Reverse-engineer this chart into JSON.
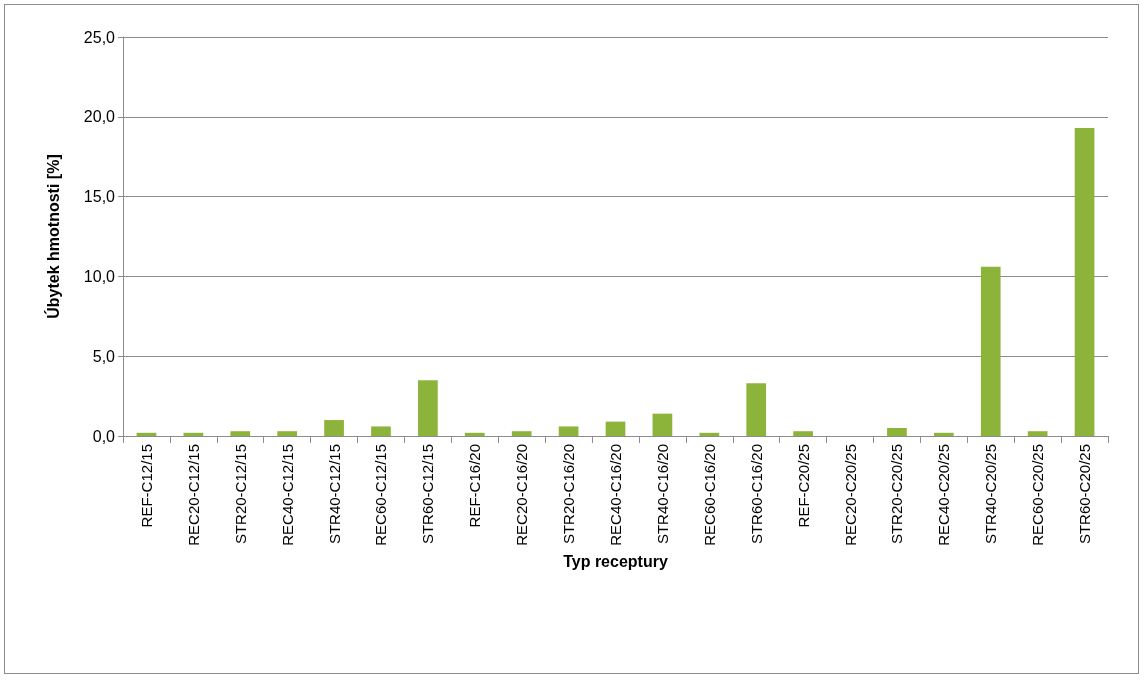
{
  "chart_data": {
    "type": "bar",
    "xlabel": "Typ receptury",
    "ylabel": "Úbytek hmotnosti [%]",
    "categories": [
      "REF-C12/15",
      "REC20-C12/15",
      "STR20-C12/15",
      "REC40-C12/15",
      "STR40-C12/15",
      "REC60-C12/15",
      "STR60-C12/15",
      "REF-C16/20",
      "REC20-C16/20",
      "STR20-C16/20",
      "REC40-C16/20",
      "STR40-C16/20",
      "REC60-C16/20",
      "STR60-C16/20",
      "REF-C20/25",
      "REC20-C20/25",
      "STR20-C20/25",
      "REC40-C20/25",
      "STR40-C20/25",
      "REC60-C20/25",
      "STR60-C20/25"
    ],
    "values": [
      0.2,
      0.2,
      0.3,
      0.3,
      1.0,
      0.6,
      3.5,
      0.2,
      0.3,
      0.6,
      0.9,
      1.4,
      0.2,
      3.3,
      0.3,
      0,
      0.5,
      0.2,
      10.6,
      0.3,
      19.3
    ],
    "color": "#8cb43a",
    "ylim": [
      0,
      25
    ],
    "yticks": [
      {
        "value": 0,
        "label": "0,0"
      },
      {
        "value": 5,
        "label": "5,0"
      },
      {
        "value": 10,
        "label": "10,0"
      },
      {
        "value": 15,
        "label": "15,0"
      },
      {
        "value": 20,
        "label": "20,0"
      },
      {
        "value": 25,
        "label": "25,0"
      }
    ],
    "grid": "y"
  }
}
